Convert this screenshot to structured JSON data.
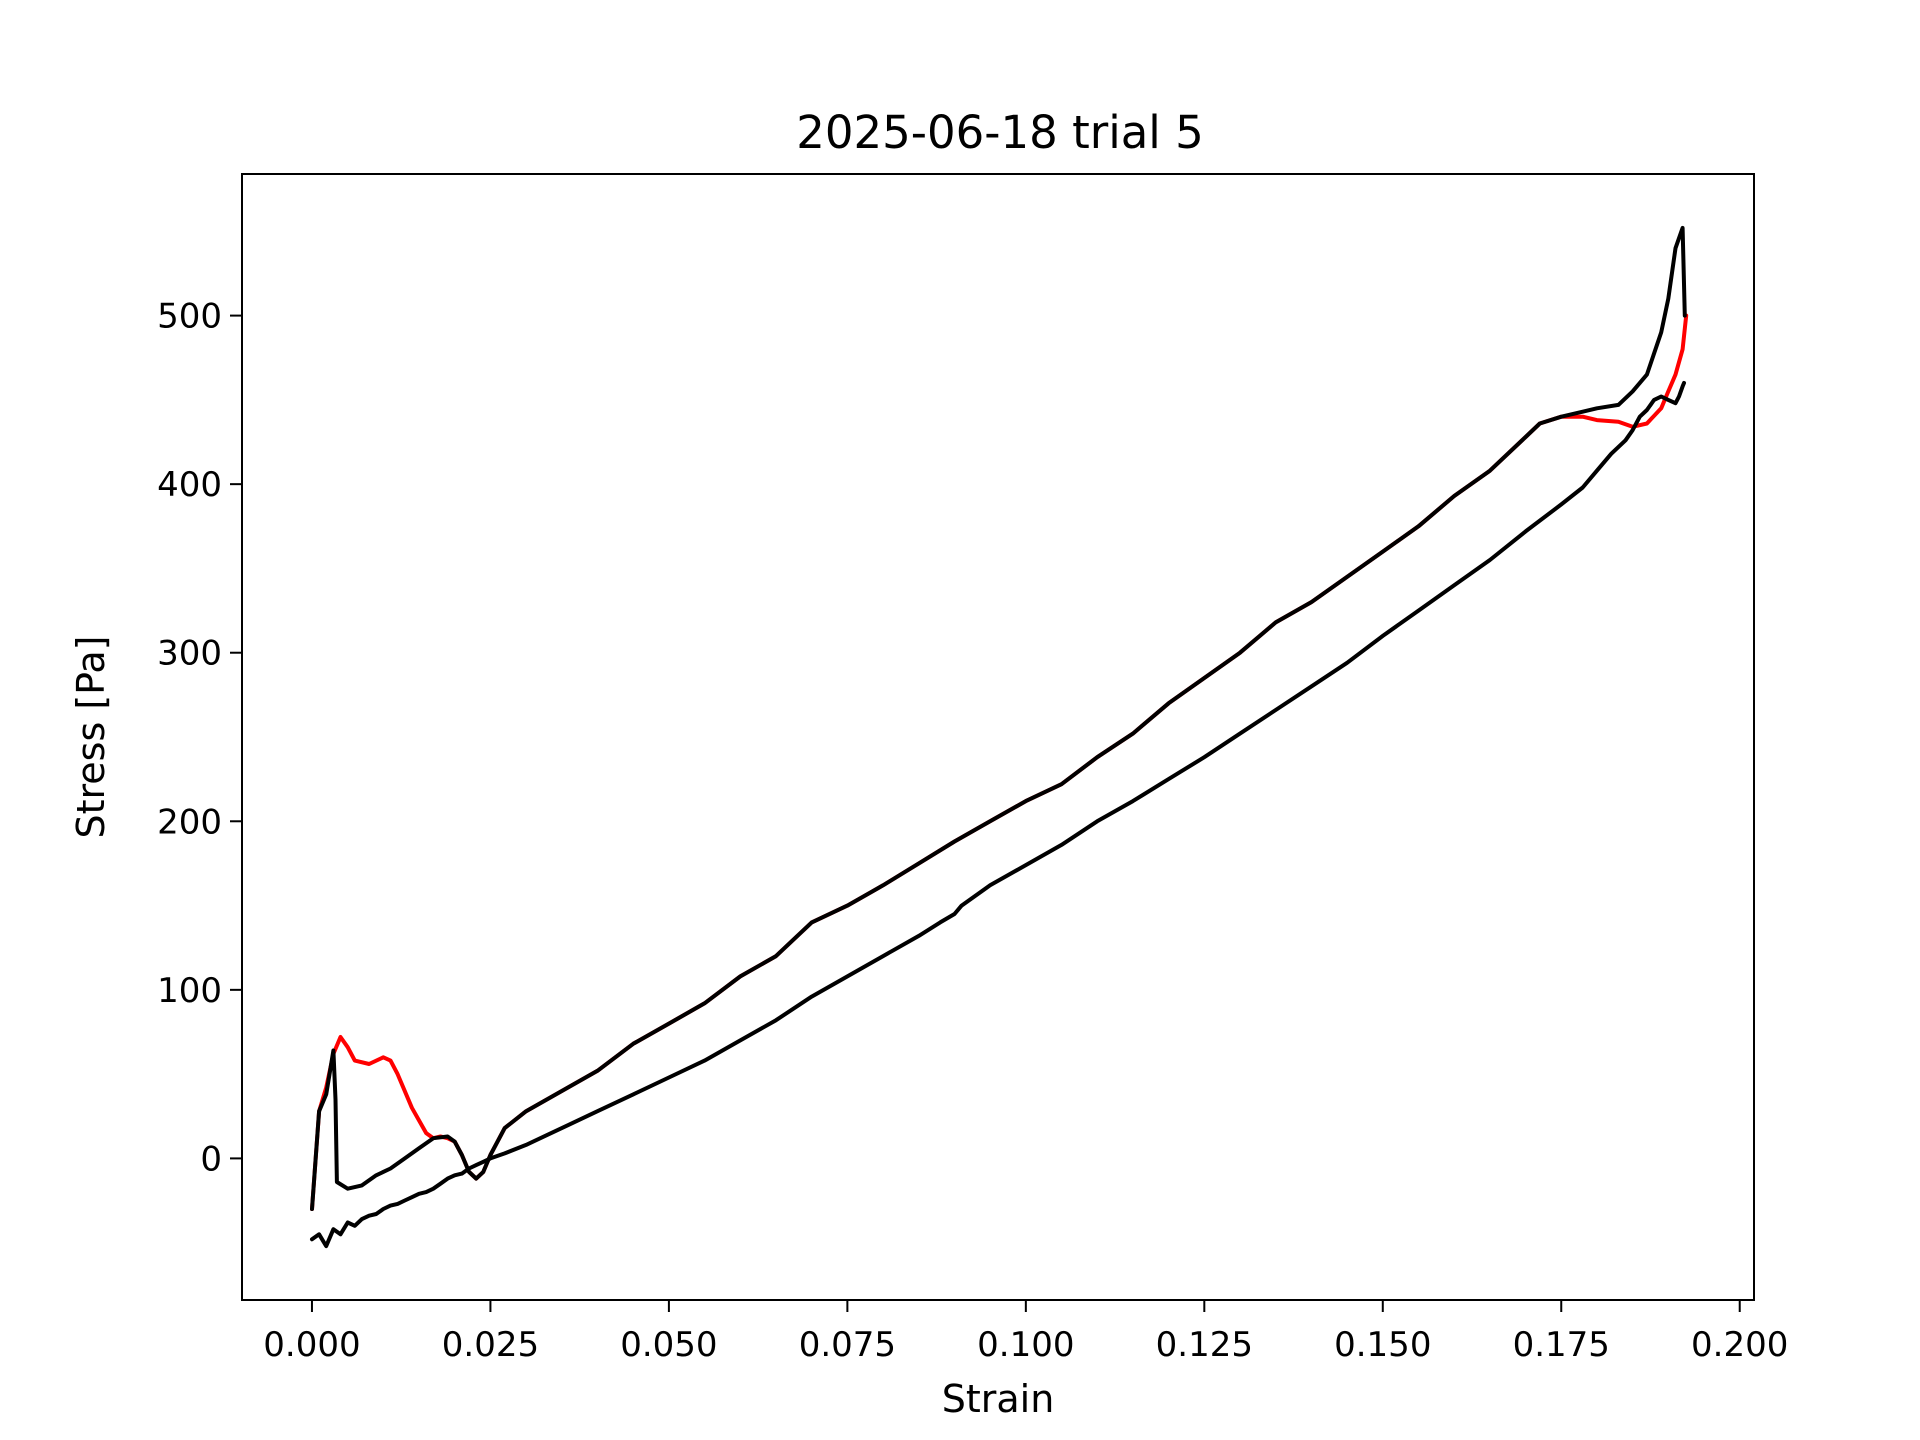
{
  "chart_data": {
    "type": "line",
    "title": "2025-06-18 trial 5",
    "xlabel": "Strain",
    "ylabel": "Stress [Pa]",
    "xlim": [
      -0.0098,
      0.202
    ],
    "ylim": [
      -84,
      584
    ],
    "xticks": [
      0.0,
      0.025,
      0.05,
      0.075,
      0.1,
      0.125,
      0.15,
      0.175,
      0.2
    ],
    "xtick_labels": [
      "0.000",
      "0.025",
      "0.050",
      "0.075",
      "0.100",
      "0.125",
      "0.150",
      "0.175",
      "0.200"
    ],
    "yticks": [
      0,
      100,
      200,
      300,
      400,
      500
    ],
    "ytick_labels": [
      "0",
      "100",
      "200",
      "300",
      "400",
      "500"
    ],
    "grid": false,
    "series": [
      {
        "color": "#ff0000",
        "x": [
          0.0,
          0.001,
          0.002,
          0.003,
          0.004,
          0.005,
          0.006,
          0.008,
          0.01,
          0.011,
          0.012,
          0.014,
          0.016,
          0.017,
          0.018,
          0.019,
          0.02,
          0.021,
          0.022,
          0.023,
          0.024,
          0.025,
          0.027,
          0.03,
          0.035,
          0.04,
          0.045,
          0.05,
          0.055,
          0.06,
          0.065,
          0.07,
          0.075,
          0.08,
          0.085,
          0.09,
          0.095,
          0.1,
          0.105,
          0.11,
          0.115,
          0.12,
          0.125,
          0.13,
          0.135,
          0.14,
          0.145,
          0.15,
          0.155,
          0.16,
          0.165,
          0.17,
          0.172,
          0.175,
          0.178,
          0.18,
          0.183,
          0.185,
          0.187,
          0.189,
          0.19,
          0.191,
          0.192,
          0.1925
        ],
        "y": [
          -30,
          28,
          42,
          62,
          72,
          66,
          58,
          56,
          60,
          58,
          50,
          30,
          15,
          12,
          13,
          12,
          10,
          2,
          -8,
          -12,
          -8,
          2,
          18,
          28,
          40,
          52,
          68,
          80,
          92,
          108,
          120,
          140,
          150,
          162,
          175,
          188,
          200,
          212,
          222,
          238,
          252,
          270,
          285,
          300,
          318,
          330,
          345,
          360,
          375,
          393,
          408,
          428,
          436,
          440,
          440,
          438,
          437,
          434,
          436,
          445,
          455,
          465,
          480,
          500
        ]
      },
      {
        "color": "#000000",
        "x": [
          0.0,
          0.001,
          0.002,
          0.003,
          0.0033,
          0.0035,
          0.005,
          0.007,
          0.009,
          0.011,
          0.013,
          0.015,
          0.017,
          0.019,
          0.02,
          0.021,
          0.022,
          0.023,
          0.024,
          0.025,
          0.027,
          0.03,
          0.035,
          0.04,
          0.045,
          0.05,
          0.055,
          0.06,
          0.065,
          0.07,
          0.075,
          0.08,
          0.085,
          0.09,
          0.095,
          0.1,
          0.105,
          0.11,
          0.115,
          0.12,
          0.125,
          0.13,
          0.135,
          0.14,
          0.145,
          0.15,
          0.155,
          0.16,
          0.165,
          0.17,
          0.172,
          0.175,
          0.178,
          0.18,
          0.183,
          0.185,
          0.187,
          0.189,
          0.19,
          0.191,
          0.192,
          0.1923
        ],
        "y": [
          -30,
          28,
          38,
          64,
          35,
          -14,
          -18,
          -16,
          -10,
          -6,
          0,
          6,
          12,
          13,
          10,
          2,
          -8,
          -12,
          -8,
          2,
          18,
          28,
          40,
          52,
          68,
          80,
          92,
          108,
          120,
          140,
          150,
          162,
          175,
          188,
          200,
          212,
          222,
          238,
          252,
          270,
          285,
          300,
          318,
          330,
          345,
          360,
          375,
          393,
          408,
          428,
          436,
          440,
          443,
          445,
          447,
          455,
          465,
          490,
          510,
          540,
          552,
          500
        ]
      },
      {
        "color": "#000000",
        "x": [
          0.0,
          0.001,
          0.002,
          0.003,
          0.004,
          0.005,
          0.006,
          0.007,
          0.008,
          0.009,
          0.01,
          0.011,
          0.012,
          0.013,
          0.014,
          0.015,
          0.016,
          0.017,
          0.018,
          0.019,
          0.02,
          0.021,
          0.022,
          0.023,
          0.024,
          0.025,
          0.027,
          0.03,
          0.033,
          0.036,
          0.04,
          0.045,
          0.05,
          0.055,
          0.06,
          0.065,
          0.07,
          0.075,
          0.08,
          0.085,
          0.088,
          0.09,
          0.091,
          0.095,
          0.1,
          0.105,
          0.11,
          0.115,
          0.12,
          0.125,
          0.13,
          0.135,
          0.14,
          0.145,
          0.15,
          0.155,
          0.16,
          0.165,
          0.17,
          0.175,
          0.178,
          0.18,
          0.182,
          0.184,
          0.185,
          0.186,
          0.187,
          0.188,
          0.189,
          0.19,
          0.191,
          0.1915,
          0.192,
          0.1922
        ],
        "y": [
          -48,
          -45,
          -52,
          -42,
          -45,
          -38,
          -40,
          -36,
          -34,
          -33,
          -30,
          -28,
          -27,
          -25,
          -23,
          -21,
          -20,
          -18,
          -15,
          -12,
          -10,
          -9,
          -6,
          -4,
          -2,
          0,
          3,
          8,
          14,
          20,
          28,
          38,
          48,
          58,
          70,
          82,
          96,
          108,
          120,
          132,
          140,
          145,
          150,
          162,
          174,
          186,
          200,
          212,
          225,
          238,
          252,
          266,
          280,
          294,
          310,
          325,
          340,
          355,
          372,
          388,
          398,
          408,
          418,
          426,
          432,
          440,
          444,
          450,
          452,
          450,
          448,
          452,
          458,
          460
        ]
      }
    ]
  }
}
